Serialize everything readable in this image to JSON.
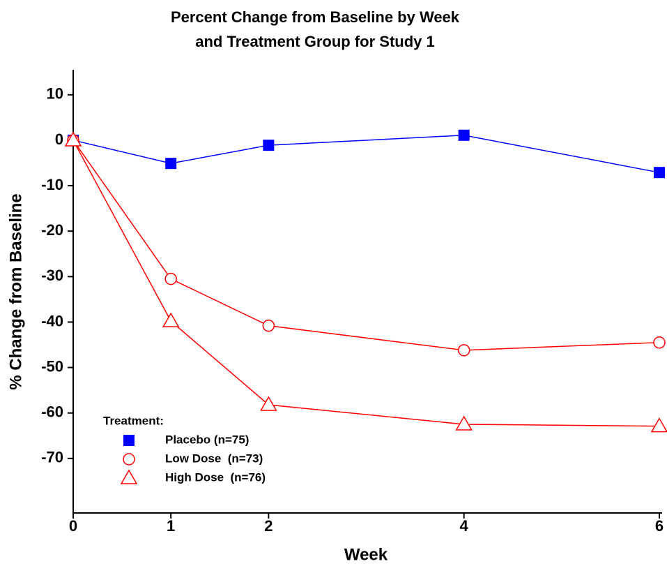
{
  "chart_data": {
    "type": "line",
    "title": [
      "Percent Change from Baseline by Week",
      "and Treatment Group for Study 1"
    ],
    "x_label": "Week",
    "y_label": "% Change from Baseline",
    "x": [
      0,
      1,
      2,
      4,
      6
    ],
    "xlim": [
      0,
      6
    ],
    "xticks": [
      0,
      1,
      2,
      4,
      6
    ],
    "ylim": [
      -82,
      15.5
    ],
    "yticks": [
      10,
      0,
      -10,
      -20,
      -30,
      -40,
      -50,
      -60,
      -70
    ],
    "grid": false,
    "legend_title": "Treatment:",
    "legend_position": "bottom-left",
    "series": [
      {
        "name": "Placebo (n=75)",
        "color": "#0000ff",
        "marker": "square",
        "values": [
          0,
          -5.1,
          -1.1,
          1.1,
          -7.1
        ]
      },
      {
        "name": "Low Dose  (n=73)",
        "color": "#ff0000",
        "marker": "circle",
        "values": [
          0,
          -30.5,
          -40.8,
          -46.2,
          -44.5
        ]
      },
      {
        "name": "High Dose  (n=76)",
        "color": "#ff0000",
        "marker": "triangle",
        "values": [
          0,
          -39.8,
          -58.2,
          -62.5,
          -62.9
        ]
      }
    ]
  }
}
